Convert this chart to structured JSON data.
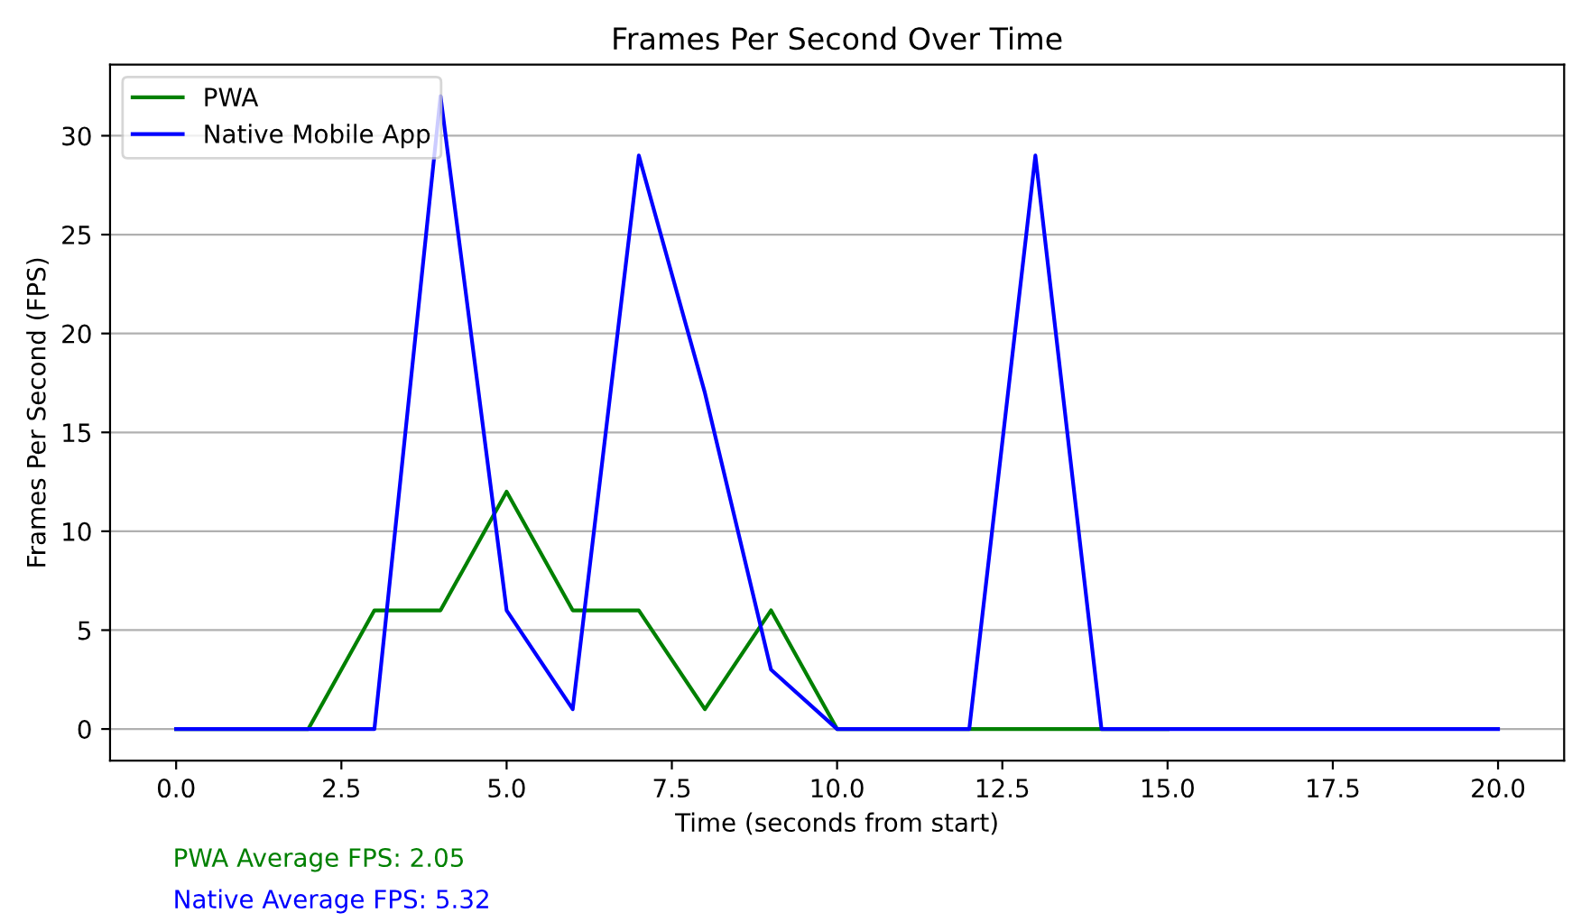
{
  "chart_data": {
    "type": "line",
    "title": "Frames Per Second Over Time",
    "xlabel": "Time (seconds from start)",
    "ylabel": "Frames Per Second (FPS)",
    "x": [
      0,
      1,
      2,
      3,
      4,
      5,
      6,
      7,
      8,
      9,
      10,
      11,
      12,
      13,
      14,
      15,
      16,
      17,
      18,
      19,
      20
    ],
    "series": [
      {
        "name": "PWA",
        "color": "#008000",
        "values": [
          0,
          0,
          0,
          6,
          6,
          12,
          6,
          6,
          1,
          6,
          0,
          0,
          0,
          0,
          0,
          0,
          null,
          null,
          null,
          null,
          null
        ]
      },
      {
        "name": "Native Mobile App",
        "color": "#0000ff",
        "values": [
          0,
          0,
          0,
          0,
          32,
          6,
          1,
          29,
          17,
          3,
          0,
          0,
          0,
          29,
          0,
          0,
          0,
          0,
          0,
          0,
          0
        ]
      }
    ],
    "xlim": [
      -1.0,
      21.0
    ],
    "ylim": [
      -1.6,
      33.6
    ],
    "xticks": [
      {
        "value": 0,
        "label": "0.0"
      },
      {
        "value": 2.5,
        "label": "2.5"
      },
      {
        "value": 5,
        "label": "5.0"
      },
      {
        "value": 7.5,
        "label": "7.5"
      },
      {
        "value": 10,
        "label": "10.0"
      },
      {
        "value": 12.5,
        "label": "12.5"
      },
      {
        "value": 15,
        "label": "15.0"
      },
      {
        "value": 17.5,
        "label": "17.5"
      },
      {
        "value": 20,
        "label": "20.0"
      }
    ],
    "yticks": [
      0,
      5,
      10,
      15,
      20,
      25,
      30
    ],
    "grid": "y",
    "legend": "top left",
    "marker": "none",
    "line_style": "solid",
    "annotations": [
      "PWA Average FPS: 2.05",
      "Native Average FPS: 5.32"
    ]
  }
}
